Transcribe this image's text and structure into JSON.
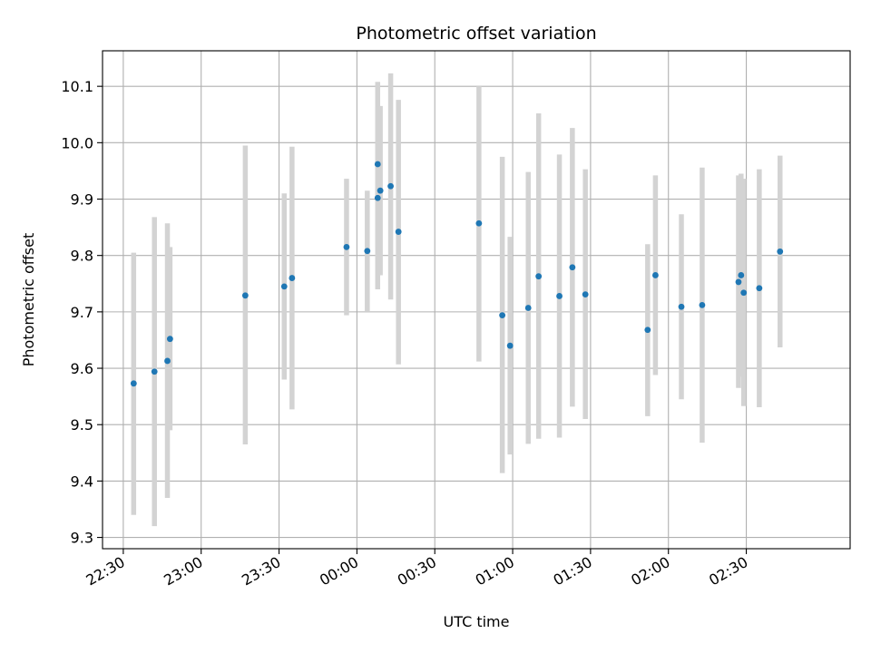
{
  "chart_data": {
    "type": "scatter",
    "title": "Photometric offset variation",
    "xlabel": "UTC time",
    "ylabel": "Photometric offset",
    "x_axis": {
      "kind": "time",
      "range": [
        "22:22",
        "03:10"
      ],
      "tick_labels": [
        "22:30",
        "23:00",
        "23:30",
        "00:00",
        "00:30",
        "01:00",
        "01:30",
        "02:00",
        "02:30"
      ]
    },
    "y_axis": {
      "range": [
        9.28,
        10.163
      ],
      "ticks": [
        9.3,
        9.4,
        9.5,
        9.6,
        9.7,
        9.8,
        9.9,
        10.0,
        10.1
      ],
      "tick_labels": [
        "9.3",
        "9.4",
        "9.5",
        "9.6",
        "9.7",
        "9.8",
        "9.9",
        "10.0",
        "10.1"
      ]
    },
    "grid": true,
    "error_bars": true,
    "colors": {
      "point": "#1f77b4",
      "error_bar": "#d3d3d3",
      "grid": "#b0b0b0"
    },
    "points": [
      {
        "time": "22:34",
        "y": 9.573,
        "lo": 9.34,
        "hi": 9.805
      },
      {
        "time": "22:42",
        "y": 9.594,
        "lo": 9.32,
        "hi": 9.868
      },
      {
        "time": "22:47",
        "y": 9.613,
        "lo": 9.37,
        "hi": 9.857
      },
      {
        "time": "22:48",
        "y": 9.652,
        "lo": 9.49,
        "hi": 9.815
      },
      {
        "time": "23:17",
        "y": 9.729,
        "lo": 9.465,
        "hi": 9.995
      },
      {
        "time": "23:32",
        "y": 9.745,
        "lo": 9.58,
        "hi": 9.91
      },
      {
        "time": "23:35",
        "y": 9.76,
        "lo": 9.527,
        "hi": 9.993
      },
      {
        "time": "23:56",
        "y": 9.815,
        "lo": 9.694,
        "hi": 9.936
      },
      {
        "time": "00:04",
        "y": 9.808,
        "lo": 9.7,
        "hi": 9.915
      },
      {
        "time": "00:08",
        "y": 9.962,
        "lo": 9.815,
        "hi": 10.108
      },
      {
        "time": "00:08",
        "y": 9.902,
        "lo": 9.74,
        "hi": 10.063
      },
      {
        "time": "00:09",
        "y": 9.915,
        "lo": 9.765,
        "hi": 10.065
      },
      {
        "time": "00:13",
        "y": 9.923,
        "lo": 9.722,
        "hi": 10.123
      },
      {
        "time": "00:16",
        "y": 9.842,
        "lo": 9.607,
        "hi": 10.076
      },
      {
        "time": "00:47",
        "y": 9.857,
        "lo": 9.612,
        "hi": 10.1
      },
      {
        "time": "00:56",
        "y": 9.694,
        "lo": 9.414,
        "hi": 9.975
      },
      {
        "time": "00:59",
        "y": 9.64,
        "lo": 9.447,
        "hi": 9.833
      },
      {
        "time": "01:06",
        "y": 9.707,
        "lo": 9.466,
        "hi": 9.948
      },
      {
        "time": "01:10",
        "y": 9.763,
        "lo": 9.475,
        "hi": 10.052
      },
      {
        "time": "01:18",
        "y": 9.728,
        "lo": 9.477,
        "hi": 9.979
      },
      {
        "time": "01:23",
        "y": 9.779,
        "lo": 9.532,
        "hi": 10.026
      },
      {
        "time": "01:28",
        "y": 9.731,
        "lo": 9.51,
        "hi": 9.953
      },
      {
        "time": "01:52",
        "y": 9.668,
        "lo": 9.515,
        "hi": 9.82
      },
      {
        "time": "01:55",
        "y": 9.765,
        "lo": 9.588,
        "hi": 9.942
      },
      {
        "time": "02:05",
        "y": 9.709,
        "lo": 9.545,
        "hi": 9.873
      },
      {
        "time": "02:13",
        "y": 9.712,
        "lo": 9.468,
        "hi": 9.956
      },
      {
        "time": "02:27",
        "y": 9.753,
        "lo": 9.565,
        "hi": 9.942
      },
      {
        "time": "02:28",
        "y": 9.765,
        "lo": 9.585,
        "hi": 9.945
      },
      {
        "time": "02:29",
        "y": 9.734,
        "lo": 9.533,
        "hi": 9.936
      },
      {
        "time": "02:35",
        "y": 9.742,
        "lo": 9.531,
        "hi": 9.953
      },
      {
        "time": "02:43",
        "y": 9.807,
        "lo": 9.637,
        "hi": 9.977
      }
    ]
  }
}
